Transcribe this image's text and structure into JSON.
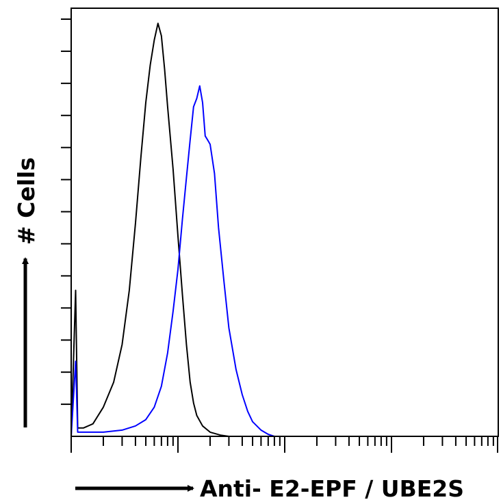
{
  "chart_data": {
    "type": "line",
    "title": "",
    "xlabel": "Anti- E2-EPF / UBE2S",
    "ylabel": "# Cells",
    "x_scale": "log",
    "xlim": [
      1,
      10000
    ],
    "ylim": [
      0,
      100
    ],
    "grid": false,
    "legend": "none",
    "series": [
      {
        "color": "#000000",
        "points": [
          [
            1,
            0
          ],
          [
            1.1,
            35
          ],
          [
            1.15,
            2
          ],
          [
            1.3,
            2
          ],
          [
            1.6,
            3
          ],
          [
            2,
            7
          ],
          [
            2.5,
            13
          ],
          [
            3,
            22
          ],
          [
            3.5,
            35
          ],
          [
            4,
            51
          ],
          [
            4.5,
            67
          ],
          [
            5,
            80
          ],
          [
            5.5,
            89
          ],
          [
            6,
            95
          ],
          [
            6.5,
            99
          ],
          [
            7,
            96
          ],
          [
            7.5,
            88
          ],
          [
            8,
            79
          ],
          [
            9,
            64
          ],
          [
            10,
            48
          ],
          [
            11,
            34
          ],
          [
            12,
            22
          ],
          [
            13,
            13
          ],
          [
            14,
            8
          ],
          [
            15,
            5
          ],
          [
            17,
            2.5
          ],
          [
            20,
            1
          ],
          [
            25,
            0.3
          ],
          [
            30,
            0
          ]
        ]
      },
      {
        "color": "#0000ff",
        "points": [
          [
            1,
            0
          ],
          [
            1.1,
            18
          ],
          [
            1.15,
            1
          ],
          [
            2,
            1
          ],
          [
            3,
            1.5
          ],
          [
            4,
            2.5
          ],
          [
            5,
            4
          ],
          [
            6,
            7
          ],
          [
            7,
            12
          ],
          [
            8,
            20
          ],
          [
            9,
            30
          ],
          [
            10,
            40
          ],
          [
            11,
            52
          ],
          [
            12,
            62
          ],
          [
            13,
            71
          ],
          [
            14,
            79
          ],
          [
            15,
            81
          ],
          [
            16,
            84
          ],
          [
            17,
            80
          ],
          [
            18,
            72
          ],
          [
            19,
            71
          ],
          [
            20,
            70
          ],
          [
            22,
            63
          ],
          [
            24,
            50
          ],
          [
            27,
            37
          ],
          [
            30,
            26
          ],
          [
            35,
            16
          ],
          [
            40,
            10
          ],
          [
            45,
            6
          ],
          [
            50,
            3.5
          ],
          [
            60,
            1.5
          ],
          [
            70,
            0.5
          ],
          [
            80,
            0
          ]
        ]
      }
    ]
  }
}
